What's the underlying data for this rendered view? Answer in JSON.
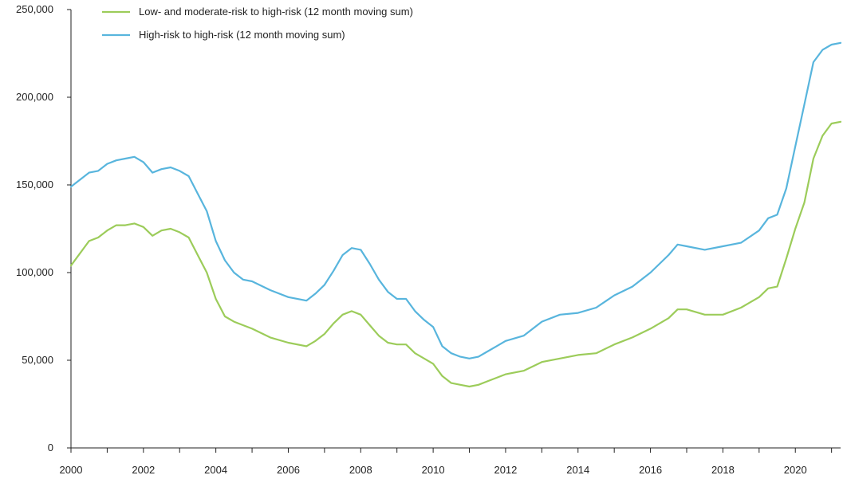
{
  "chart_data": {
    "type": "line",
    "title": "",
    "xlabel": "",
    "ylabel": "",
    "xlim": [
      2000,
      2021.25
    ],
    "ylim": [
      0,
      250000
    ],
    "grid": false,
    "legend_position": "top-left",
    "x_ticks": [
      2000,
      2002,
      2004,
      2006,
      2008,
      2010,
      2012,
      2014,
      2016,
      2018,
      2020
    ],
    "x_tick_labels": [
      "2000",
      "2002",
      "2004",
      "2006",
      "2008",
      "2010",
      "2012",
      "2014",
      "2016",
      "2018",
      "2020"
    ],
    "y_ticks": [
      0,
      50000,
      100000,
      150000,
      200000,
      250000
    ],
    "y_tick_labels": [
      "0",
      "50,000",
      "100,000",
      "150,000",
      "200,000",
      "250,000"
    ],
    "series": [
      {
        "name": "Low- and moderate-risk to high-risk  (12 month moving sum)",
        "color": "#9ccc5a",
        "x": [
          2000,
          2000.5,
          2000.75,
          2001,
          2001.25,
          2001.5,
          2001.75,
          2002,
          2002.25,
          2002.5,
          2002.75,
          2003,
          2003.25,
          2003.5,
          2003.75,
          2004,
          2004.25,
          2004.5,
          2004.75,
          2005,
          2005.5,
          2006,
          2006.5,
          2006.75,
          2007,
          2007.25,
          2007.5,
          2007.75,
          2008,
          2008.25,
          2008.5,
          2008.75,
          2009,
          2009.25,
          2009.5,
          2009.75,
          2010,
          2010.25,
          2010.5,
          2010.75,
          2011,
          2011.25,
          2011.5,
          2011.75,
          2012,
          2012.5,
          2013,
          2013.5,
          2014,
          2014.5,
          2015,
          2015.5,
          2016,
          2016.5,
          2016.75,
          2017,
          2017.5,
          2018,
          2018.5,
          2019,
          2019.25,
          2019.5,
          2019.75,
          2020,
          2020.25,
          2020.5,
          2020.75,
          2021,
          2021.25
        ],
        "values": [
          104000,
          118000,
          120000,
          124000,
          127000,
          127000,
          128000,
          126000,
          121000,
          124000,
          125000,
          123000,
          120000,
          110000,
          100000,
          85000,
          75000,
          72000,
          70000,
          68000,
          63000,
          60000,
          58000,
          61000,
          65000,
          71000,
          76000,
          78000,
          76000,
          70000,
          64000,
          60000,
          59000,
          59000,
          54000,
          51000,
          48000,
          41000,
          37000,
          36000,
          35000,
          36000,
          38000,
          40000,
          42000,
          44000,
          49000,
          51000,
          53000,
          54000,
          59000,
          63000,
          68000,
          74000,
          79000,
          79000,
          76000,
          76000,
          80000,
          86000,
          91000,
          92000,
          108000,
          125000,
          140000,
          165000,
          178000,
          185000,
          186000
        ]
      },
      {
        "name": "High-risk to high-risk (12 month moving sum)",
        "color": "#58b5dd",
        "x": [
          2000,
          2000.5,
          2000.75,
          2001,
          2001.25,
          2001.5,
          2001.75,
          2002,
          2002.25,
          2002.5,
          2002.75,
          2003,
          2003.25,
          2003.5,
          2003.75,
          2004,
          2004.25,
          2004.5,
          2004.75,
          2005,
          2005.5,
          2006,
          2006.5,
          2006.75,
          2007,
          2007.25,
          2007.5,
          2007.75,
          2008,
          2008.25,
          2008.5,
          2008.75,
          2009,
          2009.25,
          2009.5,
          2009.75,
          2010,
          2010.25,
          2010.5,
          2010.75,
          2011,
          2011.25,
          2011.5,
          2011.75,
          2012,
          2012.5,
          2013,
          2013.5,
          2014,
          2014.5,
          2015,
          2015.5,
          2016,
          2016.5,
          2016.75,
          2017,
          2017.5,
          2018,
          2018.5,
          2019,
          2019.25,
          2019.5,
          2019.75,
          2020,
          2020.25,
          2020.5,
          2020.75,
          2021,
          2021.25
        ],
        "values": [
          149000,
          157000,
          158000,
          162000,
          164000,
          165000,
          166000,
          163000,
          157000,
          159000,
          160000,
          158000,
          155000,
          145000,
          135000,
          118000,
          107000,
          100000,
          96000,
          95000,
          90000,
          86000,
          84000,
          88000,
          93000,
          101000,
          110000,
          114000,
          113000,
          105000,
          96000,
          89000,
          85000,
          85000,
          78000,
          73000,
          69000,
          58000,
          54000,
          52000,
          51000,
          52000,
          55000,
          58000,
          61000,
          64000,
          72000,
          76000,
          77000,
          80000,
          87000,
          92000,
          100000,
          110000,
          116000,
          115000,
          113000,
          115000,
          117000,
          124000,
          131000,
          133000,
          148000,
          172000,
          196000,
          220000,
          227000,
          230000,
          231000
        ]
      }
    ]
  }
}
